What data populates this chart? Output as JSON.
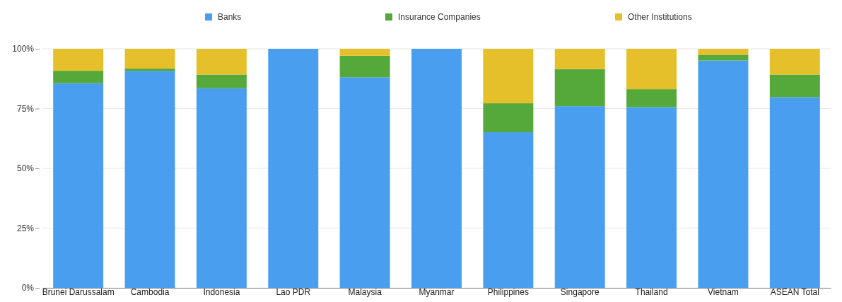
{
  "chart_data": {
    "type": "bar",
    "stacked": true,
    "categories": [
      "Brunei Darussalam",
      "Cambodia",
      "Indonesia",
      "Lao PDR",
      "Malaysia",
      "Myanmar",
      "Philippines",
      "Singapore",
      "Thailand",
      "Vietnam",
      "ASEAN Total"
    ],
    "series": [
      {
        "name": "Banks",
        "color": "#4a9ef0",
        "values": [
          85.6,
          90.8,
          83.5,
          100,
          88.1,
          100,
          65.1,
          76.0,
          75.6,
          95.1,
          79.8
        ]
      },
      {
        "name": "Insurance Companies",
        "color": "#55a83a",
        "values": [
          5.2,
          0.9,
          5.7,
          0,
          9.0,
          0,
          12.1,
          15.5,
          7.5,
          2.4,
          9.4
        ]
      },
      {
        "name": "Other Institutions",
        "color": "#e5c02a",
        "values": [
          9.2,
          8.3,
          10.8,
          0,
          2.9,
          0,
          22.8,
          8.5,
          16.9,
          2.5,
          10.8
        ]
      }
    ],
    "ylim": [
      0,
      100
    ],
    "yticks": [
      {
        "value": 0,
        "label": "0%"
      },
      {
        "value": 25,
        "label": "25%"
      },
      {
        "value": 50,
        "label": "50%"
      },
      {
        "value": 75,
        "label": "75%"
      },
      {
        "value": 100,
        "label": "100%"
      }
    ],
    "grid": "y",
    "legend": "top"
  }
}
